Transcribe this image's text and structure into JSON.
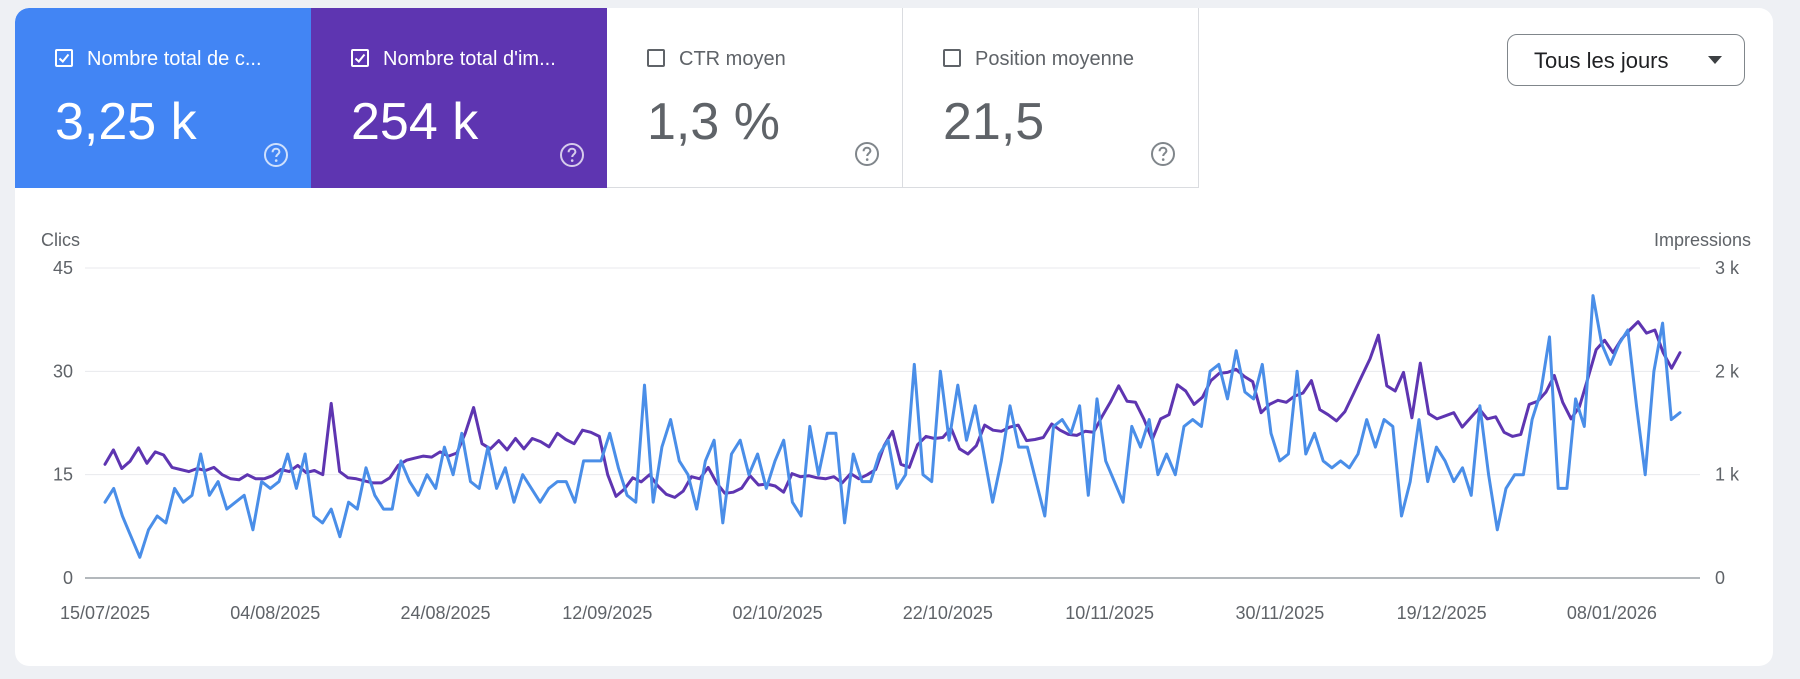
{
  "metrics": [
    {
      "label": "Nombre total de c...",
      "value": "3,25 k",
      "checked": true,
      "color": "#4285f4"
    },
    {
      "label": "Nombre total d'im...",
      "value": "254 k",
      "checked": true,
      "color": "#5e35b1"
    },
    {
      "label": "CTR moyen",
      "value": "1,3 %",
      "checked": false
    },
    {
      "label": "Position moyenne",
      "value": "21,5",
      "checked": false
    }
  ],
  "range": {
    "label": "Tous les jours",
    "icon": "dropdown-arrow-icon"
  },
  "icons": {
    "help": "help-circle-icon",
    "checkbox": "checkbox-icon"
  },
  "chart_data": {
    "type": "line",
    "y_left_label": "Clics",
    "y_right_label": "Impressions",
    "y_left_ticks": [
      "0",
      "15",
      "30",
      "45"
    ],
    "y_right_ticks": [
      "0",
      "1 k",
      "2 k",
      "3 k"
    ],
    "y_left_range": [
      0,
      45
    ],
    "y_right_range": [
      0,
      3000
    ],
    "x_start": "15/07/2025",
    "x_end": "16/01/2026",
    "x_ticks": [
      "15/07/2025",
      "04/08/2025",
      "24/08/2025",
      "12/09/2025",
      "02/10/2025",
      "22/10/2025",
      "10/11/2025",
      "30/11/2025",
      "19/12/2025",
      "08/01/2026"
    ],
    "series": [
      {
        "name": "Clics",
        "axis": "left",
        "color": "#4a8ee8",
        "values": [
          11,
          13,
          9,
          6,
          3,
          7,
          9,
          8,
          13,
          11,
          12,
          18,
          12,
          14,
          10,
          11,
          12,
          7,
          14,
          13,
          14,
          18,
          13,
          18,
          9,
          8,
          10,
          6,
          11,
          10,
          16,
          12,
          10,
          10,
          17,
          14,
          12,
          15,
          13,
          19,
          15,
          21,
          14,
          13,
          19,
          13,
          16,
          11,
          15,
          13,
          11,
          13,
          14,
          14,
          11,
          17,
          17,
          17,
          21,
          16,
          12,
          11,
          28,
          11,
          19,
          23,
          17,
          15,
          10,
          17,
          20,
          8,
          18,
          20,
          15,
          18,
          13,
          17,
          20,
          11,
          9,
          22,
          15,
          21,
          21,
          8,
          18,
          14,
          14,
          18,
          20,
          13,
          15,
          31,
          15,
          14,
          30,
          20,
          28,
          20,
          25,
          18,
          11,
          17,
          25,
          19,
          19,
          14,
          9,
          22,
          23,
          21,
          25,
          12,
          26,
          17,
          14,
          11,
          22,
          19,
          23,
          15,
          18,
          15,
          22,
          23,
          22,
          30,
          31,
          26,
          33,
          27,
          26,
          31,
          21,
          17,
          18,
          30,
          18,
          21,
          17,
          16,
          17,
          16,
          18,
          23,
          19,
          23,
          22,
          9,
          14,
          23,
          14,
          19,
          17,
          14,
          16,
          12,
          25,
          15,
          7,
          13,
          15,
          15,
          23,
          27,
          35,
          13,
          13,
          26,
          22,
          41,
          34,
          31,
          34,
          36,
          25,
          15,
          30,
          37,
          23,
          24
        ]
      },
      {
        "name": "Impressions",
        "axis": "right",
        "color": "#5e35b1",
        "values": [
          1100,
          1240,
          1060,
          1130,
          1260,
          1110,
          1220,
          1190,
          1070,
          1050,
          1030,
          1060,
          1040,
          1070,
          1000,
          960,
          950,
          1000,
          960,
          960,
          990,
          1050,
          1030,
          1090,
          1020,
          1040,
          1000,
          1690,
          1030,
          970,
          960,
          940,
          920,
          920,
          970,
          1090,
          1140,
          1160,
          1180,
          1170,
          1220,
          1180,
          1210,
          1400,
          1650,
          1300,
          1250,
          1330,
          1240,
          1350,
          1250,
          1350,
          1320,
          1270,
          1400,
          1340,
          1300,
          1430,
          1410,
          1370,
          1000,
          790,
          860,
          970,
          930,
          1000,
          890,
          810,
          780,
          840,
          980,
          960,
          1070,
          920,
          820,
          830,
          870,
          990,
          900,
          910,
          890,
          830,
          1010,
          980,
          990,
          970,
          960,
          980,
          920,
          1010,
          960,
          1000,
          1050,
          1280,
          1420,
          1100,
          1070,
          1290,
          1370,
          1350,
          1360,
          1450,
          1250,
          1200,
          1280,
          1480,
          1430,
          1420,
          1460,
          1480,
          1330,
          1340,
          1360,
          1490,
          1430,
          1390,
          1380,
          1420,
          1410,
          1560,
          1700,
          1860,
          1710,
          1700,
          1540,
          1340,
          1540,
          1580,
          1870,
          1810,
          1680,
          1750,
          1910,
          1980,
          1990,
          2020,
          1950,
          1900,
          1600,
          1680,
          1720,
          1700,
          1760,
          1790,
          1910,
          1630,
          1580,
          1520,
          1610,
          1780,
          1950,
          2120,
          2350,
          1860,
          1810,
          1990,
          1550,
          2080,
          1590,
          1540,
          1570,
          1600,
          1460,
          1550,
          1640,
          1540,
          1560,
          1410,
          1370,
          1390,
          1680,
          1710,
          1800,
          1960,
          1700,
          1540,
          1660,
          1930,
          2210,
          2300,
          2180,
          2310,
          2400,
          2480,
          2370,
          2400,
          2180,
          2030,
          2180
        ]
      }
    ]
  }
}
